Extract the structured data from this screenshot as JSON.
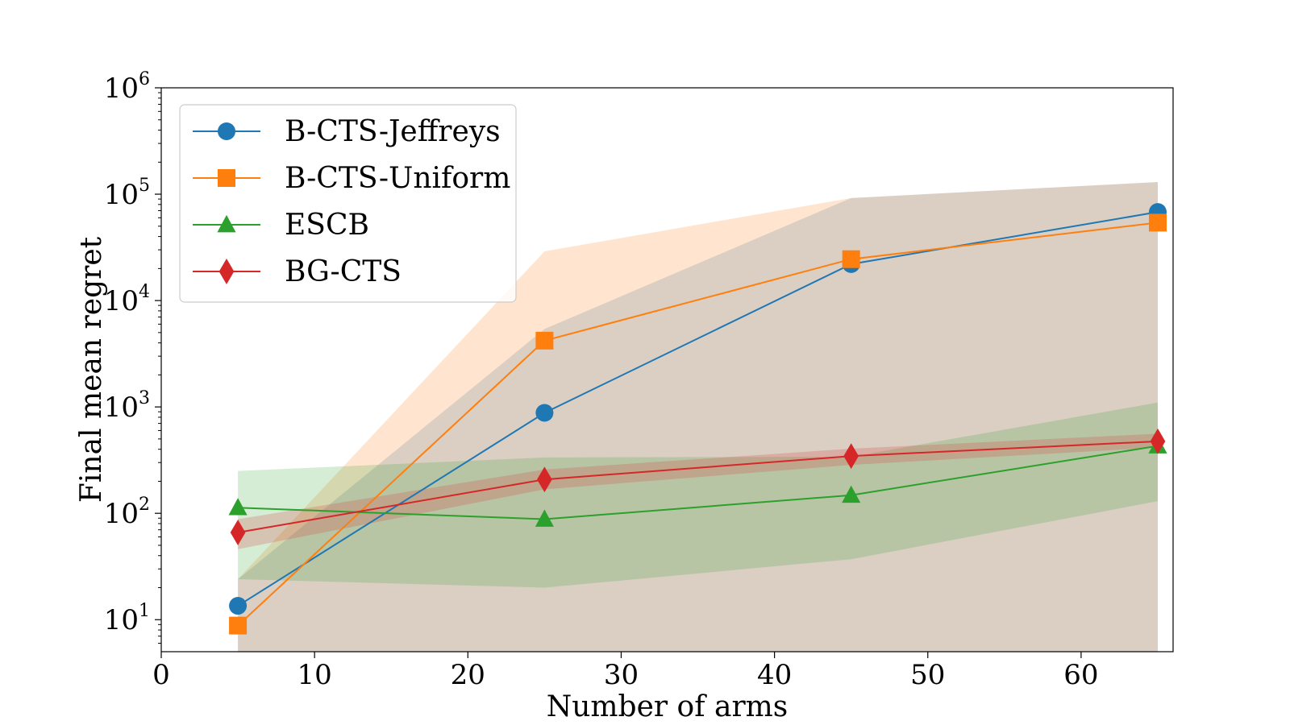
{
  "chart_data": {
    "type": "line",
    "title": "",
    "xlabel": "Number of arms",
    "ylabel": "Final mean regret",
    "xlim": [
      0,
      66
    ],
    "ylim": [
      5,
      1000000
    ],
    "yscale": "log",
    "grid": false,
    "legend_position": "top-left",
    "x_ticks": [
      0,
      10,
      20,
      30,
      40,
      50,
      60
    ],
    "y_ticks": [
      {
        "base": "10",
        "exp": "1",
        "value": 10
      },
      {
        "base": "10",
        "exp": "2",
        "value": 100
      },
      {
        "base": "10",
        "exp": "3",
        "value": 1000
      },
      {
        "base": "10",
        "exp": "4",
        "value": 10000
      },
      {
        "base": "10",
        "exp": "5",
        "value": 100000
      },
      {
        "base": "10",
        "exp": "6",
        "value": 1000000
      }
    ],
    "x": [
      5,
      25,
      45,
      65
    ],
    "series": [
      {
        "name": "B-CTS-Jeffreys",
        "color": "#1f77b4",
        "marker": "circle",
        "values": [
          13.5,
          880,
          22000,
          68000
        ],
        "band_lower": [
          5,
          5,
          5,
          5
        ],
        "band_upper": [
          24,
          5400,
          92000,
          130000
        ],
        "band_opacity": 0.2
      },
      {
        "name": "B-CTS-Uniform",
        "color": "#ff7f0e",
        "marker": "square",
        "values": [
          8.8,
          4200,
          24500,
          54000
        ],
        "band_lower": [
          5,
          5,
          5,
          5
        ],
        "band_upper": [
          24,
          29000,
          92000,
          130000
        ],
        "band_opacity": 0.2
      },
      {
        "name": "ESCB",
        "color": "#2ca02c",
        "marker": "triangle",
        "values": [
          113,
          88,
          148,
          430
        ],
        "band_lower": [
          24,
          20,
          37,
          130
        ],
        "band_upper": [
          250,
          335,
          340,
          1100
        ],
        "band_opacity": 0.2
      },
      {
        "name": "BG-CTS",
        "color": "#d62728",
        "marker": "diamond",
        "values": [
          66,
          208,
          345,
          475
        ],
        "band_lower": [
          46,
          168,
          285,
          415
        ],
        "band_upper": [
          88,
          258,
          405,
          560
        ],
        "band_opacity": 0.2
      }
    ]
  }
}
